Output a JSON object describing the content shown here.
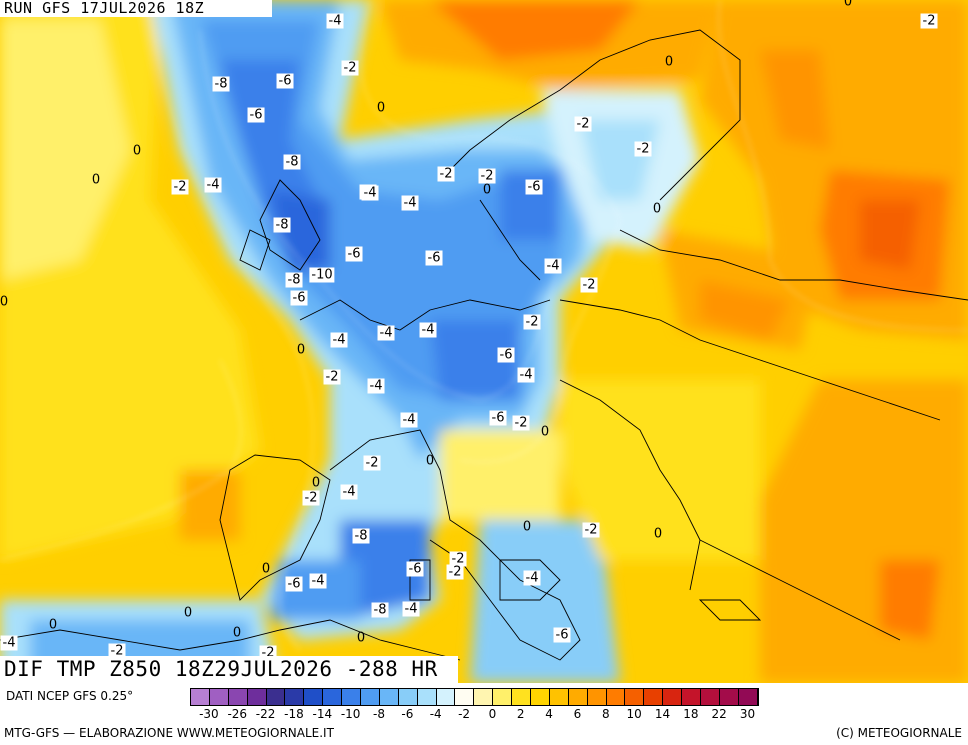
{
  "header": {
    "run_label": "RUN GFS 17JUL2026 18Z"
  },
  "field_title": "DIF TMP Z850 18Z29JUL2026 -288 HR",
  "footer": {
    "data_source": "DATI NCEP GFS 0.25°",
    "credit": "MTG-GFS — ELABORAZIONE WWW.METEOGIORNALE.IT",
    "copyright": "(C) METEOGIORNALE"
  },
  "legend": {
    "colors": [
      "#b77fd3",
      "#a05fc2",
      "#8a46b0",
      "#6e2e9c",
      "#3b2f8f",
      "#2a3aa8",
      "#1f4fc8",
      "#2a66dc",
      "#3a80ea",
      "#4f9cf2",
      "#69b6f7",
      "#88cdf8",
      "#a9e0fb",
      "#d4f2fd",
      "#fffdf2",
      "#fff5b0",
      "#fff06a",
      "#ffe11f",
      "#ffd400",
      "#ffc200",
      "#ffab00",
      "#ff9400",
      "#ff7c00",
      "#f56000",
      "#e84000",
      "#d82510",
      "#c4142a",
      "#b40f3c",
      "#a30c4a",
      "#920a55"
    ],
    "tick_labels": [
      "-30",
      "-26",
      "-22",
      "-18",
      "-14",
      "-10",
      "-8",
      "-6",
      "-4",
      "-2",
      "0",
      "2",
      "4",
      "6",
      "8",
      "10",
      "14",
      "18",
      "22",
      "30"
    ]
  },
  "contour_labels": [
    {
      "v": "-4",
      "box": true
    },
    {
      "v": "-2",
      "box": true
    },
    {
      "v": "0",
      "box": false
    },
    {
      "v": "-2",
      "box": true
    },
    {
      "v": "-8",
      "box": true
    },
    {
      "v": "-6",
      "box": true
    },
    {
      "v": "-2",
      "box": true
    },
    {
      "v": "0",
      "box": false
    },
    {
      "v": "0",
      "box": false
    },
    {
      "v": "-6",
      "box": true
    },
    {
      "v": "-2",
      "box": true
    },
    {
      "v": "0",
      "box": false
    },
    {
      "v": "-8",
      "box": true
    },
    {
      "v": "-2",
      "box": true
    },
    {
      "v": "0",
      "box": false
    },
    {
      "v": "-2",
      "box": true
    },
    {
      "v": "-4",
      "box": true
    },
    {
      "v": "-2",
      "box": true
    },
    {
      "v": "0",
      "box": false
    },
    {
      "v": "-4",
      "box": true
    },
    {
      "v": "-6",
      "box": true
    },
    {
      "v": "-4",
      "box": true
    },
    {
      "v": "-4",
      "box": true
    },
    {
      "v": "0",
      "box": false
    },
    {
      "v": "-8",
      "box": true
    },
    {
      "v": "-6",
      "box": true
    },
    {
      "v": "-6",
      "box": true
    },
    {
      "v": "-4",
      "box": true
    },
    {
      "v": "-8",
      "box": true
    },
    {
      "v": "-10",
      "box": true
    },
    {
      "v": "-2",
      "box": true
    },
    {
      "v": "-6",
      "box": true
    },
    {
      "v": "0",
      "box": false
    },
    {
      "v": "-2",
      "box": true
    },
    {
      "v": "-4",
      "box": true
    },
    {
      "v": "-4",
      "box": true
    },
    {
      "v": "-4",
      "box": true
    },
    {
      "v": "0",
      "box": false
    },
    {
      "v": "-6",
      "box": true
    },
    {
      "v": "-2",
      "box": true
    },
    {
      "v": "-4",
      "box": true
    },
    {
      "v": "-4",
      "box": true
    },
    {
      "v": "-4",
      "box": true
    },
    {
      "v": "-6",
      "box": true
    },
    {
      "v": "-2",
      "box": true
    },
    {
      "v": "0",
      "box": false
    },
    {
      "v": "-2",
      "box": true
    },
    {
      "v": "0",
      "box": false
    },
    {
      "v": "0",
      "box": false
    },
    {
      "v": "-2",
      "box": true
    },
    {
      "v": "-4",
      "box": true
    },
    {
      "v": "-8",
      "box": true
    },
    {
      "v": "0",
      "box": false
    },
    {
      "v": "-2",
      "box": true
    },
    {
      "v": "0",
      "box": false
    },
    {
      "v": "-6",
      "box": true
    },
    {
      "v": "-2",
      "box": true
    },
    {
      "v": "-2",
      "box": true
    },
    {
      "v": "-6",
      "box": true
    },
    {
      "v": "-4",
      "box": true
    },
    {
      "v": "0",
      "box": false
    },
    {
      "v": "-4",
      "box": true
    },
    {
      "v": "0",
      "box": false
    },
    {
      "v": "-8",
      "box": true
    },
    {
      "v": "-4",
      "box": true
    },
    {
      "v": "0",
      "box": false
    },
    {
      "v": "0",
      "box": false
    },
    {
      "v": "-6",
      "box": true
    },
    {
      "v": "0",
      "box": false
    },
    {
      "v": "-4",
      "box": true
    },
    {
      "v": "-2",
      "box": true
    },
    {
      "v": "-2",
      "box": true
    }
  ]
}
